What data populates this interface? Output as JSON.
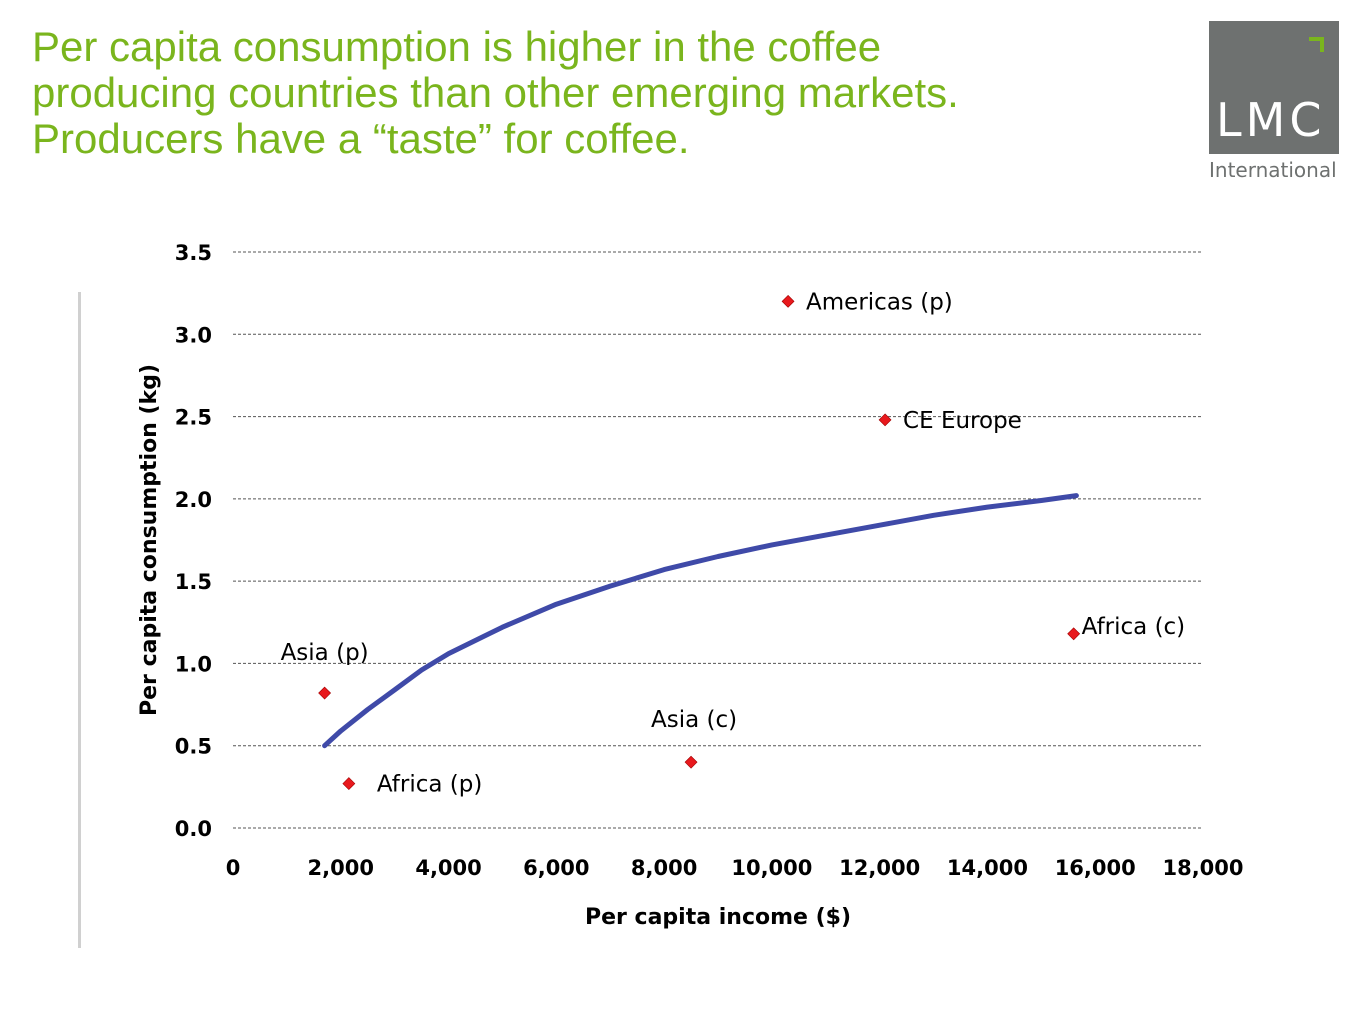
{
  "slide": {
    "title_lines": [
      "Per capita consumption is higher in the coffee",
      "producing countries than other emerging markets.",
      "Producers have a “taste” for coffee."
    ]
  },
  "logo": {
    "text": "LMC",
    "subtitle": "International",
    "background": "#6e7170",
    "accent": "#7ab51d"
  },
  "colors": {
    "title": "#7ab51d",
    "curve": "#3f4aa8",
    "points": "#e8191d",
    "grid": "#555555"
  },
  "chart_data": {
    "type": "scatter",
    "title": "",
    "xlabel": "Per capita income ($)",
    "ylabel": "Per capita consumption (kg)",
    "xlim": [
      0,
      18000
    ],
    "ylim": [
      0,
      3.5
    ],
    "x_ticks": [
      0,
      2000,
      4000,
      6000,
      8000,
      10000,
      12000,
      14000,
      16000,
      18000
    ],
    "x_tick_labels": [
      "0",
      "2,000",
      "4,000",
      "6,000",
      "8,000",
      "10,000",
      "12,000",
      "14,000",
      "16,000",
      "18,000"
    ],
    "y_ticks": [
      0,
      0.5,
      1.0,
      1.5,
      2.0,
      2.5,
      3.0,
      3.5
    ],
    "y_tick_labels": [
      "0.0",
      "0.5",
      "1.0",
      "1.5",
      "2.0",
      "2.5",
      "3.0",
      "3.5"
    ],
    "grid": "horizontal dashed",
    "points": [
      {
        "label": "Americas (p)",
        "x": 10300,
        "y": 3.2
      },
      {
        "label": "CE Europe",
        "x": 12100,
        "y": 2.48
      },
      {
        "label": "Africa (c)",
        "x": 15600,
        "y": 1.18
      },
      {
        "label": "Asia (p)",
        "x": 1700,
        "y": 0.82
      },
      {
        "label": "Asia (c)",
        "x": 8500,
        "y": 0.4
      },
      {
        "label": "Africa (p)",
        "x": 2150,
        "y": 0.27
      }
    ],
    "curve": {
      "x": [
        1700,
        2000,
        2500,
        3000,
        3500,
        4000,
        5000,
        6000,
        7000,
        8000,
        9000,
        10000,
        11000,
        12000,
        13000,
        14000,
        15000,
        15650
      ],
      "y": [
        0.5,
        0.59,
        0.72,
        0.84,
        0.96,
        1.06,
        1.22,
        1.36,
        1.47,
        1.57,
        1.65,
        1.72,
        1.78,
        1.84,
        1.9,
        1.95,
        1.99,
        2.02
      ]
    }
  }
}
